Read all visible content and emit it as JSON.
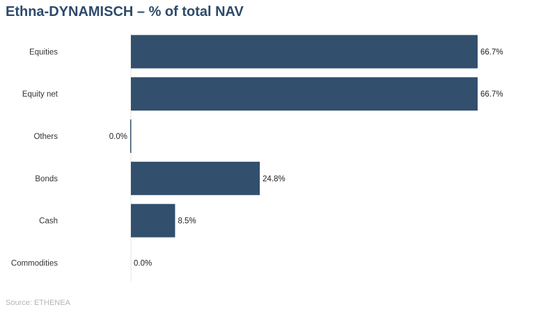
{
  "chart_data": {
    "type": "bar",
    "orientation": "horizontal",
    "title": "Ethna-DYNAMISCH – % of total NAV",
    "categories": [
      "Equities",
      "Equity net",
      "Others",
      "Bonds",
      "Cash",
      "Commodities"
    ],
    "values": [
      66.7,
      66.7,
      0.0,
      24.8,
      8.5,
      0.0
    ],
    "data_labels": [
      "66.7%",
      "66.7%",
      "0.0%",
      "24.8%",
      "8.5%",
      "0.0%"
    ],
    "xlim": [
      0,
      70
    ],
    "grid": false,
    "bar_color": "#324f6d",
    "source": "Source: ETHENEA"
  }
}
